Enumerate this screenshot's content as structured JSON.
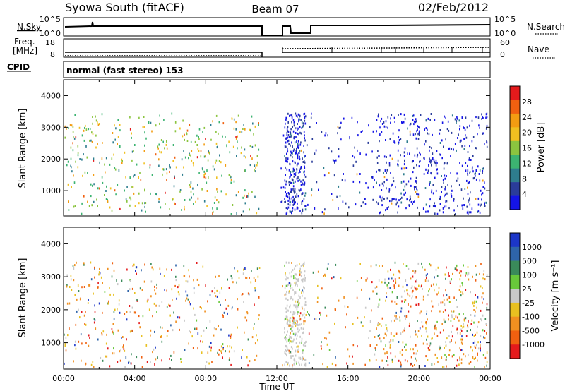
{
  "header": {
    "station": "Syowa South (fitACF)",
    "beam": "Beam 07",
    "date": "02/Feb/2012"
  },
  "noise_panel": {
    "left_label": "N.Sky",
    "right_label": "N.Search",
    "left_ticks": [
      "10^5",
      "10^0"
    ],
    "right_ticks": [
      "10^5",
      "10^0"
    ]
  },
  "freq_panel": {
    "left_label_line1": "Freq.",
    "left_label_line2": "[MHz]",
    "right_label": "Nave",
    "left_ticks": [
      "18",
      "8"
    ],
    "right_ticks": [
      "60",
      "0"
    ]
  },
  "cpid": {
    "label": "CPID",
    "text": "normal (fast stereo) 153"
  },
  "colors": {
    "power": [
      "#1414e6",
      "#2a3c9a",
      "#2e7d8e",
      "#3cb371",
      "#8bc43f",
      "#f0c020",
      "#f39c12",
      "#f06010",
      "#e41a1c"
    ],
    "velocity": [
      "#1c36c8",
      "#2e64aa",
      "#3a8a5a",
      "#68c83a",
      "#c8c8c8",
      "#e8c020",
      "#f09020",
      "#f06010",
      "#e41a1c"
    ]
  },
  "chart_data": [
    {
      "id": "power",
      "type": "scatter",
      "xlabel": "",
      "ylabel": "Slant Range [km]",
      "xlim": [
        0,
        24
      ],
      "ylim": [
        200,
        4500
      ],
      "yticks": [
        "1000",
        "2000",
        "3000",
        "4000"
      ],
      "colorbar_label": "Power [dB]",
      "colorbar_ticks": [
        "4",
        "8",
        "12",
        "16",
        "20",
        "24",
        "28"
      ]
    },
    {
      "id": "velocity",
      "type": "scatter",
      "xlabel": "Time UT",
      "ylabel": "Slant Range [km]",
      "xlim": [
        0,
        24
      ],
      "ylim": [
        200,
        4500
      ],
      "yticks": [
        "1000",
        "2000",
        "3000",
        "4000"
      ],
      "xticks": [
        "00:00",
        "04:00",
        "08:00",
        "12:00",
        "16:00",
        "20:00",
        "00:00"
      ],
      "colorbar_label": "Velocity [m s⁻¹]",
      "colorbar_ticks": [
        "1000",
        "500",
        "100",
        "25",
        "-25",
        "-100",
        "-500",
        "-1000"
      ]
    }
  ]
}
